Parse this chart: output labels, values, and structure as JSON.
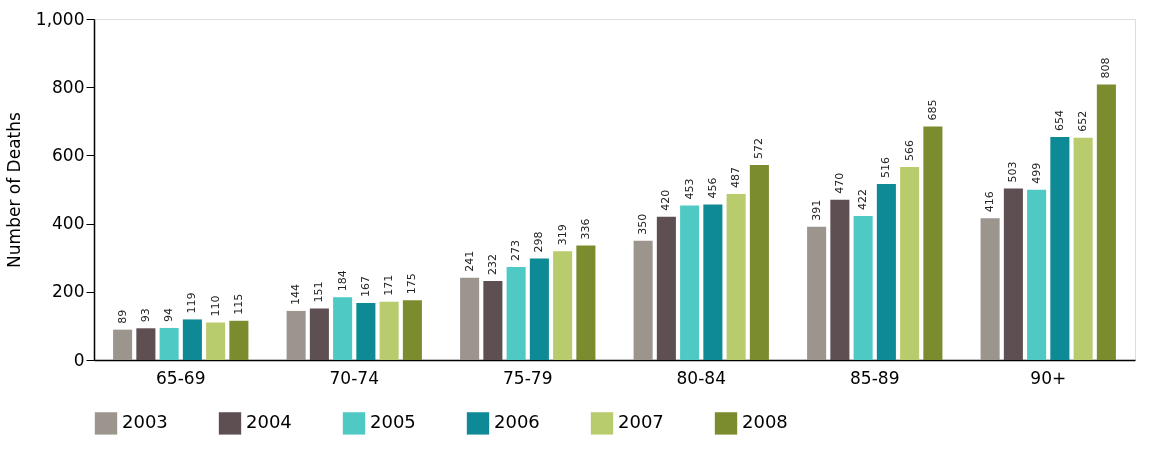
{
  "chart_data": {
    "type": "bar",
    "ylabel": "Number of Deaths",
    "categories": [
      "65-69",
      "70-74",
      "75-79",
      "80-84",
      "85-89",
      "90+"
    ],
    "series": [
      {
        "name": "2003",
        "color": "#9b958e",
        "values": [
          89,
          144,
          241,
          350,
          391,
          416
        ]
      },
      {
        "name": "2004",
        "color": "#5e4f53",
        "values": [
          93,
          151,
          232,
          420,
          470,
          503
        ]
      },
      {
        "name": "2005",
        "color": "#4fc9c4",
        "values": [
          94,
          184,
          273,
          453,
          422,
          499
        ]
      },
      {
        "name": "2006",
        "color": "#0e8a96",
        "values": [
          119,
          167,
          298,
          456,
          516,
          654
        ]
      },
      {
        "name": "2007",
        "color": "#b8cc6e",
        "values": [
          110,
          171,
          319,
          487,
          566,
          652
        ]
      },
      {
        "name": "2008",
        "color": "#7a8c2e",
        "values": [
          115,
          175,
          336,
          572,
          685,
          808
        ]
      }
    ],
    "ylim": [
      0,
      1000
    ],
    "yticks": [
      0,
      200,
      400,
      600,
      800,
      {
        "value": 1000,
        "label": "1,000"
      }
    ],
    "grid": false,
    "legend": "bottom",
    "data_labels": true
  }
}
